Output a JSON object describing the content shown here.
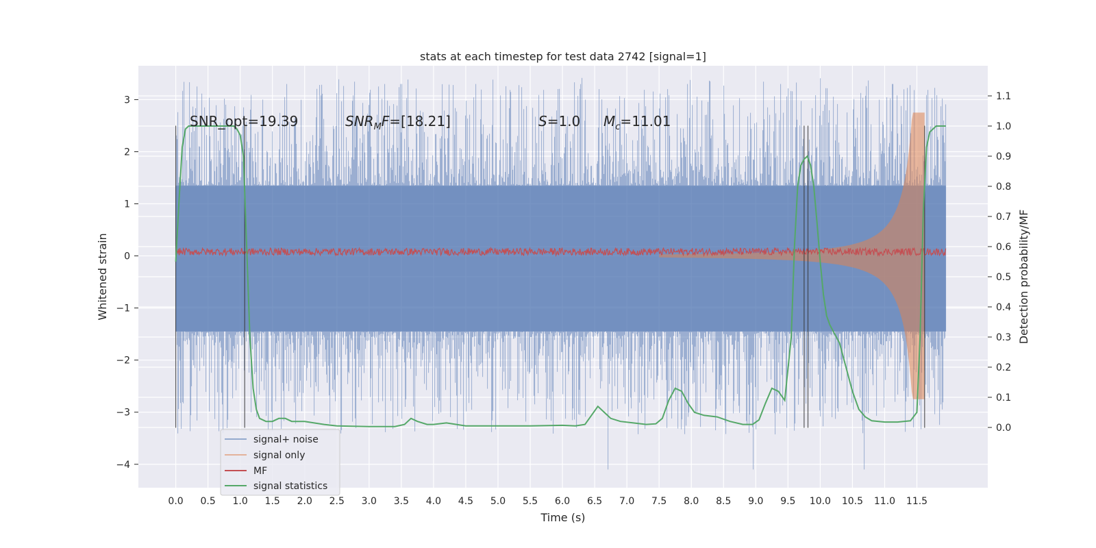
{
  "chart_data": {
    "type": "line",
    "title": "stats at each timestep for test data 2742 [signal=1]",
    "xlabel": "Time (s)",
    "ylabel": "Whitened strain",
    "ylabel_right": "Detection probability/MF",
    "xlim": [
      -0.58,
      12.6
    ],
    "ylim": [
      -4.45,
      3.65
    ],
    "ylim_right": [
      -0.2,
      1.2
    ],
    "grid": true,
    "legend_position": "bottom-left",
    "x_ticks": [
      "0.0",
      "0.5",
      "1.0",
      "1.5",
      "2.0",
      "2.5",
      "3.0",
      "3.5",
      "4.0",
      "4.5",
      "5.0",
      "5.5",
      "6.0",
      "6.5",
      "7.0",
      "7.5",
      "8.0",
      "8.5",
      "9.0",
      "9.5",
      "10.0",
      "10.5",
      "11.0",
      "11.5"
    ],
    "y_ticks": [
      "3",
      "2",
      "1",
      "0",
      "−1",
      "−2",
      "−3",
      "−4"
    ],
    "y_ticks_right": [
      "1.1",
      "1.0",
      "0.9",
      "0.8",
      "0.7",
      "0.6",
      "0.5",
      "0.4",
      "0.3",
      "0.2",
      "0.1",
      "0.0"
    ],
    "annotations": [
      {
        "prefix": "SNR_opt=",
        "value": "19.39"
      },
      {
        "prefix_base": "SNR",
        "prefix_sub": "M",
        "prefix_tail": "F=",
        "value": "[18.21]"
      },
      {
        "prefix_base": "S",
        "prefix_tail": "=",
        "value": "1.0"
      },
      {
        "prefix_base": "M",
        "prefix_sub": "c",
        "prefix_tail": "=",
        "value": "11.01"
      }
    ],
    "vertical_lines": [
      0.0,
      1.07,
      9.75,
      9.81,
      11.62
    ],
    "series": [
      {
        "name": "signal+ noise",
        "color": "#4c72b0",
        "axis": "left",
        "style": "noise-band",
        "envelope": {
          "t": [
            0.0,
            11.95
          ],
          "upper": 1.35,
          "lower": -1.45
        },
        "spike_range": [
          -4.1,
          3.3
        ]
      },
      {
        "name": "signal only",
        "color": "#dd8452",
        "axis": "left",
        "style": "chirp",
        "chirp": {
          "t_start": 7.5,
          "t_merge": 11.62,
          "peak": 2.75
        }
      },
      {
        "name": "MF",
        "color": "#c44e52",
        "axis": "left",
        "style": "noisy-line",
        "level": 0.08,
        "amplitude": 0.07,
        "t": [
          0.0,
          11.95
        ]
      },
      {
        "name": "signal statistics",
        "color": "#55a868",
        "axis": "right",
        "style": "line",
        "x": [
          0.0,
          0.05,
          0.1,
          0.15,
          0.2,
          0.3,
          0.5,
          0.7,
          0.9,
          0.95,
          1.0,
          1.05,
          1.1,
          1.15,
          1.2,
          1.25,
          1.3,
          1.4,
          1.5,
          1.6,
          1.7,
          1.8,
          2.0,
          2.3,
          2.5,
          3.0,
          3.4,
          3.55,
          3.65,
          3.75,
          3.9,
          4.0,
          4.2,
          4.5,
          5.0,
          5.5,
          6.0,
          6.2,
          6.35,
          6.45,
          6.55,
          6.65,
          6.75,
          6.9,
          7.1,
          7.3,
          7.45,
          7.55,
          7.65,
          7.75,
          7.85,
          7.95,
          8.05,
          8.2,
          8.4,
          8.6,
          8.8,
          8.95,
          9.05,
          9.15,
          9.25,
          9.35,
          9.45,
          9.55,
          9.6,
          9.65,
          9.7,
          9.75,
          9.8,
          9.85,
          9.9,
          9.95,
          10.0,
          10.05,
          10.1,
          10.15,
          10.2,
          10.3,
          10.4,
          10.5,
          10.6,
          10.7,
          10.8,
          11.0,
          11.2,
          11.4,
          11.5,
          11.55,
          11.6,
          11.65,
          11.7,
          11.75,
          11.8,
          11.9,
          11.95
        ],
        "y": [
          0.55,
          0.75,
          0.93,
          0.99,
          1.0,
          1.0,
          1.0,
          1.0,
          1.0,
          0.99,
          0.97,
          0.9,
          0.6,
          0.3,
          0.13,
          0.06,
          0.03,
          0.02,
          0.02,
          0.03,
          0.03,
          0.02,
          0.02,
          0.01,
          0.005,
          0.003,
          0.003,
          0.01,
          0.03,
          0.02,
          0.01,
          0.01,
          0.015,
          0.005,
          0.005,
          0.005,
          0.007,
          0.005,
          0.01,
          0.04,
          0.07,
          0.05,
          0.03,
          0.02,
          0.015,
          0.01,
          0.012,
          0.03,
          0.09,
          0.13,
          0.12,
          0.08,
          0.05,
          0.04,
          0.035,
          0.02,
          0.01,
          0.01,
          0.025,
          0.08,
          0.13,
          0.12,
          0.09,
          0.3,
          0.6,
          0.8,
          0.87,
          0.89,
          0.9,
          0.87,
          0.8,
          0.68,
          0.55,
          0.44,
          0.37,
          0.34,
          0.32,
          0.28,
          0.2,
          0.12,
          0.06,
          0.035,
          0.022,
          0.018,
          0.018,
          0.022,
          0.05,
          0.3,
          0.72,
          0.93,
          0.98,
          0.99,
          1.0,
          1.0,
          1.0
        ]
      }
    ]
  }
}
